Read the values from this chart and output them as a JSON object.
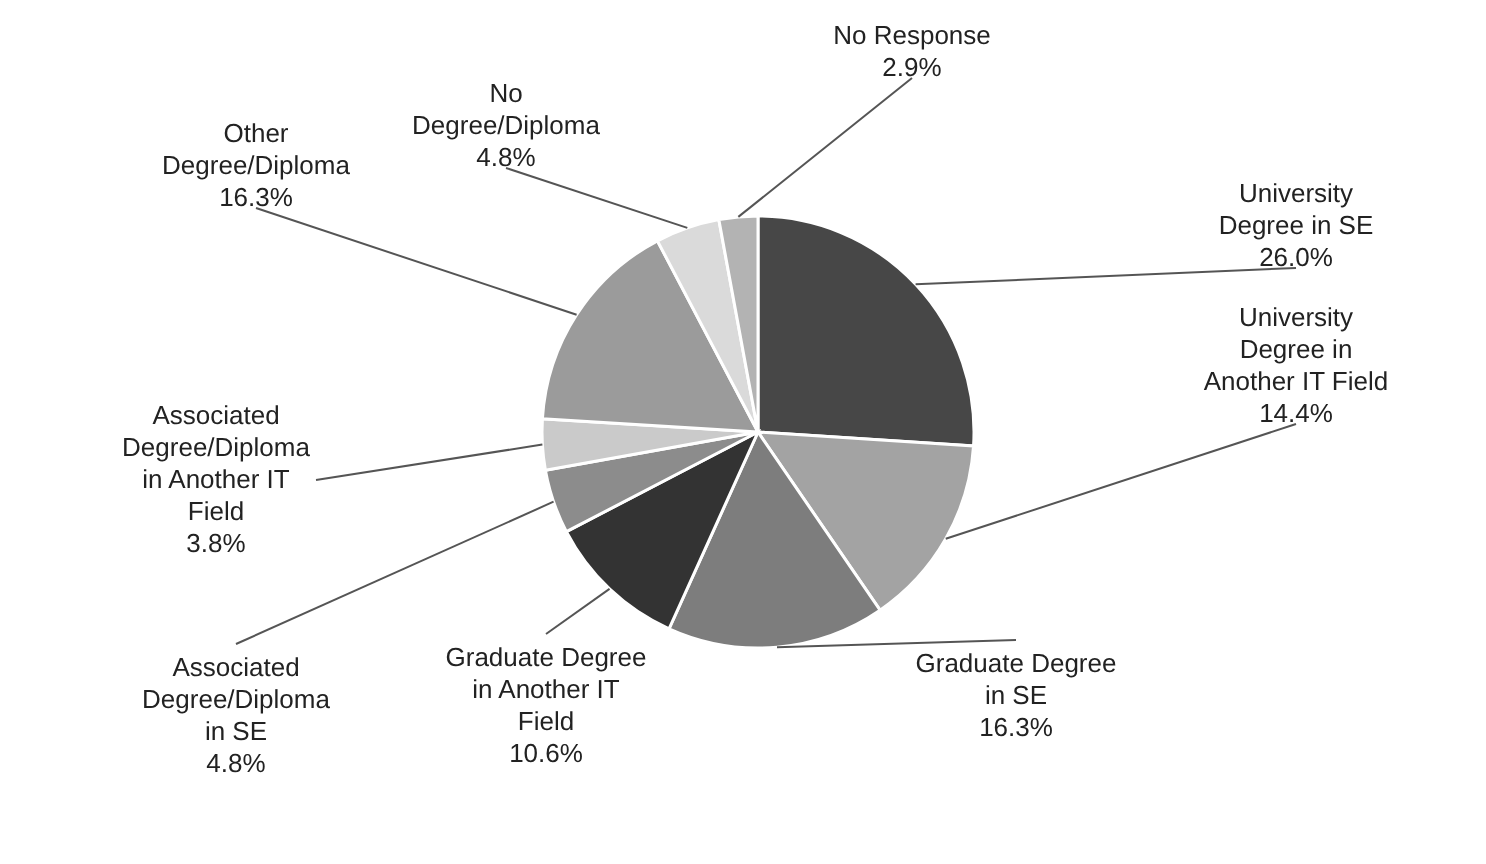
{
  "chart_data": {
    "type": "pie",
    "categories": [
      "University Degree in SE",
      "University Degree in Another IT Field",
      "Graduate Degree in SE",
      "Graduate Degree in Another IT Field",
      "Associated Degree/Diploma in SE",
      "Associated Degree/Diploma in Another IT Field",
      "Other Degree/Diploma",
      "No Degree/Diploma",
      "No Response"
    ],
    "values": [
      26.0,
      14.4,
      16.3,
      10.6,
      4.8,
      3.8,
      16.3,
      4.8,
      2.9
    ],
    "colors": [
      "#474747",
      "#a3a3a3",
      "#7d7d7d",
      "#333333",
      "#8c8c8c",
      "#cacaca",
      "#9b9b9b",
      "#dadada",
      "#b3b3b3"
    ],
    "value_labels": [
      "26.0%",
      "14.4%",
      "16.3%",
      "10.6%",
      "4.8%",
      "3.8%",
      "16.3%",
      "4.8%",
      "2.9%"
    ]
  }
}
